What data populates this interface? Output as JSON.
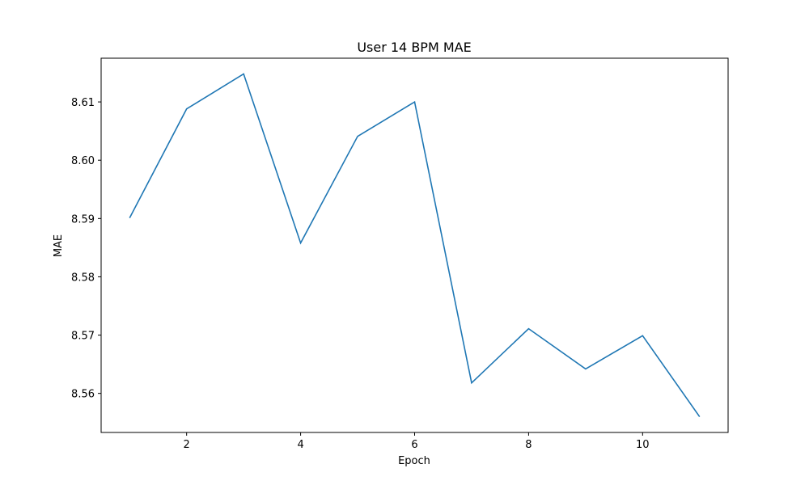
{
  "chart_data": {
    "type": "line",
    "title": "User 14 BPM MAE",
    "xlabel": "Epoch",
    "ylabel": "MAE",
    "x": [
      1,
      2,
      3,
      4,
      5,
      6,
      7,
      8,
      9,
      10,
      11
    ],
    "series": [
      {
        "values": [
          8.5901,
          8.6088,
          8.6148,
          8.5858,
          8.6041,
          8.61,
          8.5618,
          8.5711,
          8.5642,
          8.5699,
          8.556
        ],
        "color": "#1f77b4"
      }
    ],
    "xlim": [
      0.5,
      11.5
    ],
    "ylim": [
      8.5533,
      8.6175
    ],
    "xticks": [
      2,
      4,
      6,
      8,
      10
    ],
    "xtick_labels": [
      "2",
      "4",
      "6",
      "8",
      "10"
    ],
    "yticks": [
      8.56,
      8.57,
      8.58,
      8.59,
      8.6,
      8.61
    ],
    "ytick_labels": [
      "8.56",
      "8.57",
      "8.58",
      "8.59",
      "8.60",
      "8.61"
    ],
    "grid": false,
    "legend": "none"
  }
}
